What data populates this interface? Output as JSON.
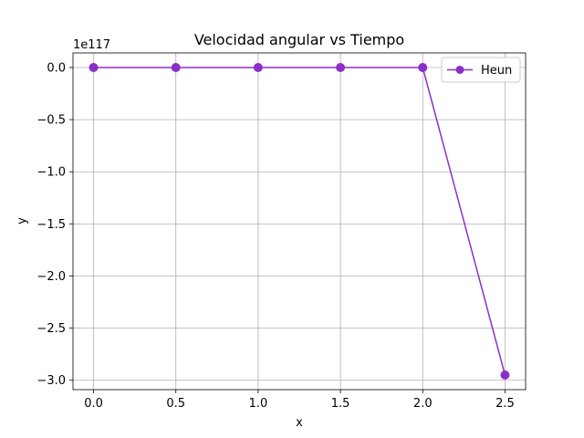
{
  "chart_data": {
    "type": "line",
    "title": "Velocidad angular vs Tiempo",
    "xlabel": "x",
    "ylabel": "y",
    "y_offset_text": "1e117",
    "x": [
      0.0,
      0.5,
      1.0,
      1.5,
      2.0,
      2.5
    ],
    "xlim": [
      -0.125,
      2.625
    ],
    "ylim": [
      -3.09,
      0.14
    ],
    "x_ticks": [
      0.0,
      0.5,
      1.0,
      1.5,
      2.0,
      2.5
    ],
    "x_tick_labels": [
      "0.0",
      "0.5",
      "1.0",
      "1.5",
      "2.0",
      "2.5"
    ],
    "y_ticks": [
      0.0,
      -0.5,
      -1.0,
      -1.5,
      -2.0,
      -2.5,
      -3.0
    ],
    "y_tick_labels": [
      "0.0",
      "−0.5",
      "−1.0",
      "−1.5",
      "−2.0",
      "−2.5",
      "−3.0"
    ],
    "y_unit_scale": "1e117",
    "grid": true,
    "legend_position": "top-right",
    "series": [
      {
        "name": "Heun",
        "color": "#8b2fc9",
        "marker": "circle",
        "values": [
          0.0,
          0.0,
          0.0,
          0.0,
          0.0,
          -2.95
        ]
      }
    ]
  }
}
